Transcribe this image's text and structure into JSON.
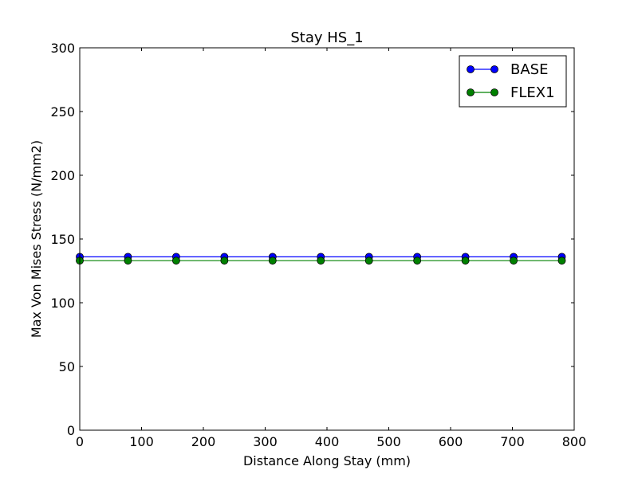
{
  "chart_data": {
    "type": "line",
    "title": "Stay HS_1",
    "xlabel": "Distance Along Stay (mm)",
    "ylabel": "Max Von Mises Stress (N/mm2)",
    "xlim": [
      0,
      800
    ],
    "ylim": [
      0,
      300
    ],
    "xticks": [
      0,
      100,
      200,
      300,
      400,
      500,
      600,
      700,
      800
    ],
    "yticks": [
      0,
      50,
      100,
      150,
      200,
      250,
      300
    ],
    "xtick_labels": [
      "0",
      "100",
      "200",
      "300",
      "400",
      "500",
      "600",
      "700",
      "800"
    ],
    "ytick_labels": [
      "0",
      "50",
      "100",
      "150",
      "200",
      "250",
      "300"
    ],
    "grid": false,
    "legend_position": "top-right",
    "x": [
      0,
      78,
      156,
      234,
      312,
      390,
      468,
      546,
      624,
      702,
      780
    ],
    "series": [
      {
        "name": "BASE",
        "color": "#0000ff",
        "marker": "circle",
        "values": [
          136,
          136,
          136,
          136,
          136,
          136,
          136,
          136,
          136,
          136,
          136
        ]
      },
      {
        "name": "FLEX1",
        "color": "#008000",
        "marker": "circle",
        "values": [
          133,
          133,
          133,
          133,
          133,
          133,
          133,
          133,
          133,
          133,
          133
        ]
      }
    ]
  }
}
